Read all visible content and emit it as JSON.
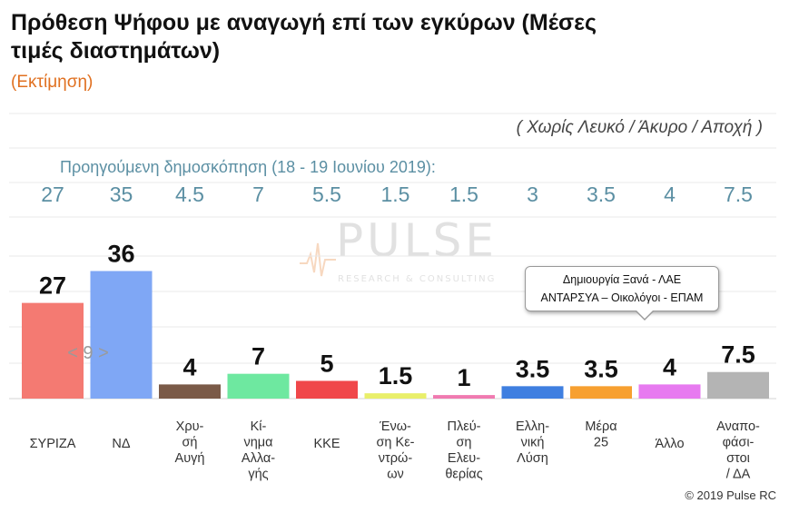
{
  "header": {
    "title": "Πρόθεση Ψήφου με αναγωγή επί των εγκύρων (Μέσες τιμές διαστημάτων)",
    "subtitle": "(Εκτίμηση)",
    "note": "( Χωρίς Λευκό / Άκυρο / Αποχή )",
    "previous_label": "Προηγούμενη δημοσκόπηση (18 - 19 Ιουνίου 2019):"
  },
  "watermark": {
    "main": "PULSE",
    "sub": "RESEARCH & CONSULTING"
  },
  "callout": {
    "line1": "Δημιουργία Ξανά -  ΛΑΕ",
    "line2": "ΑΝΤΑΡΣΥΑ – Οικολόγοι - ΕΠΑΜ"
  },
  "pager_text": "< 9 >",
  "footer": {
    "copyright": "© 2019 Pulse RC"
  },
  "chart_data": {
    "type": "bar",
    "title": "Πρόθεση Ψήφου με αναγωγή επί των εγκύρων (Μέσες τιμές διαστημάτων)",
    "categories": [
      "ΣΥΡΙΖΑ",
      "ΝΔ",
      "Χρυ-σή Αυγή",
      "Κί-νημα Αλλα-γής",
      "ΚΚΕ",
      "Ένω-ση Κε-ντρώ-ων",
      "Πλεύ-ση Ελευ-θερίας",
      "Ελλη-νική Λύση",
      "Μέρα 25",
      "Άλλο",
      "Αναπο-φάσι-στοι / ΔΑ"
    ],
    "category_lines": [
      [
        "ΣΥΡΙΖΑ"
      ],
      [
        "ΝΔ"
      ],
      [
        "Χρυ-",
        "σή",
        "Αυγή"
      ],
      [
        "Κί-",
        "νημα",
        "Αλλα-",
        "γής"
      ],
      [
        "ΚΚΕ"
      ],
      [
        "Ένω-",
        "ση Κε-",
        "ντρώ-",
        "ων"
      ],
      [
        "Πλεύ-",
        "ση",
        "Ελευ-",
        "θερίας"
      ],
      [
        "Ελλη-",
        "νική",
        "Λύση"
      ],
      [
        "Μέρα",
        "25"
      ],
      [
        "Άλλο"
      ],
      [
        "Αναπο-",
        "φάσι-",
        "στοι",
        "/ ΔΑ"
      ]
    ],
    "series": [
      {
        "values": [
          27,
          36,
          4,
          7,
          5,
          1.5,
          1,
          3.5,
          3.5,
          4,
          7.5
        ]
      }
    ],
    "value_labels": [
      "27",
      "36",
      "4",
      "7",
      "5",
      "1.5",
      "1",
      "3.5",
      "3.5",
      "4",
      "7.5"
    ],
    "previous_values": [
      "27",
      "35",
      "4.5",
      "7",
      "5.5",
      "1.5",
      "1.5",
      "3",
      "3.5",
      "4",
      "7.5"
    ],
    "colors": [
      "#f47a72",
      "#7fa7f5",
      "#7a5a48",
      "#6ee8a0",
      "#f0474a",
      "#e9ef6a",
      "#f07ab0",
      "#3f7fe0",
      "#f7a030",
      "#e77af0",
      "#b4b4b4"
    ],
    "ylim": [
      0,
      40
    ],
    "grid": true
  }
}
